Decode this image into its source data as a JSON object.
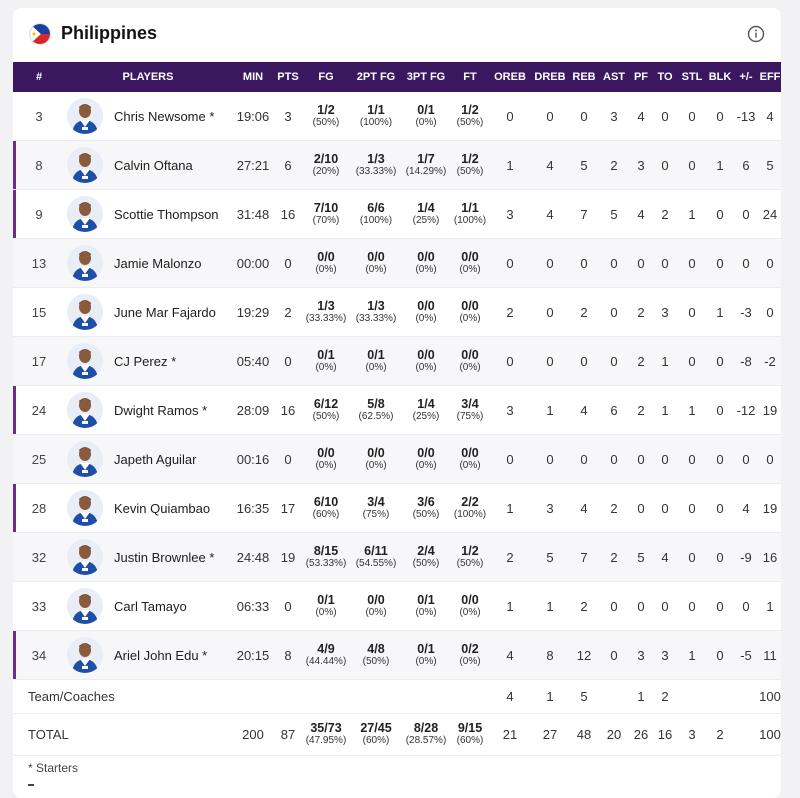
{
  "team": {
    "name": "Philippines",
    "flag_icon": "philippines-flag-icon",
    "info_icon": "info-icon"
  },
  "colors": {
    "header_bg": "#3b1760",
    "accent": "#6a2c8f"
  },
  "columns": [
    "#",
    "PLAYERS",
    "MIN",
    "PTS",
    "FG",
    "2PT FG",
    "3PT FG",
    "FT",
    "OREB",
    "DREB",
    "REB",
    "AST",
    "PF",
    "TO",
    "STL",
    "BLK",
    "+/-",
    "EFF"
  ],
  "players": [
    {
      "no": "3",
      "name": "Chris Newsome *",
      "min": "19:06",
      "pts": "3",
      "fg": "1/2",
      "fg_pct": "(50%)",
      "fg2": "1/1",
      "fg2_pct": "(100%)",
      "fg3": "0/1",
      "fg3_pct": "(0%)",
      "ft": "1/2",
      "ft_pct": "(50%)",
      "oreb": "0",
      "dreb": "0",
      "reb": "0",
      "ast": "3",
      "pf": "4",
      "to": "0",
      "stl": "0",
      "blk": "0",
      "pm": "-13",
      "eff": "4",
      "marked": false
    },
    {
      "no": "8",
      "name": "Calvin Oftana",
      "min": "27:21",
      "pts": "6",
      "fg": "2/10",
      "fg_pct": "(20%)",
      "fg2": "1/3",
      "fg2_pct": "(33.33%)",
      "fg3": "1/7",
      "fg3_pct": "(14.29%)",
      "ft": "1/2",
      "ft_pct": "(50%)",
      "oreb": "1",
      "dreb": "4",
      "reb": "5",
      "ast": "2",
      "pf": "3",
      "to": "0",
      "stl": "0",
      "blk": "1",
      "pm": "6",
      "eff": "5",
      "marked": true
    },
    {
      "no": "9",
      "name": "Scottie Thompson",
      "min": "31:48",
      "pts": "16",
      "fg": "7/10",
      "fg_pct": "(70%)",
      "fg2": "6/6",
      "fg2_pct": "(100%)",
      "fg3": "1/4",
      "fg3_pct": "(25%)",
      "ft": "1/1",
      "ft_pct": "(100%)",
      "oreb": "3",
      "dreb": "4",
      "reb": "7",
      "ast": "5",
      "pf": "4",
      "to": "2",
      "stl": "1",
      "blk": "0",
      "pm": "0",
      "eff": "24",
      "marked": true
    },
    {
      "no": "13",
      "name": "Jamie Malonzo",
      "min": "00:00",
      "pts": "0",
      "fg": "0/0",
      "fg_pct": "(0%)",
      "fg2": "0/0",
      "fg2_pct": "(0%)",
      "fg3": "0/0",
      "fg3_pct": "(0%)",
      "ft": "0/0",
      "ft_pct": "(0%)",
      "oreb": "0",
      "dreb": "0",
      "reb": "0",
      "ast": "0",
      "pf": "0",
      "to": "0",
      "stl": "0",
      "blk": "0",
      "pm": "0",
      "eff": "0",
      "marked": false
    },
    {
      "no": "15",
      "name": "June Mar Fajardo",
      "min": "19:29",
      "pts": "2",
      "fg": "1/3",
      "fg_pct": "(33.33%)",
      "fg2": "1/3",
      "fg2_pct": "(33.33%)",
      "fg3": "0/0",
      "fg3_pct": "(0%)",
      "ft": "0/0",
      "ft_pct": "(0%)",
      "oreb": "2",
      "dreb": "0",
      "reb": "2",
      "ast": "0",
      "pf": "2",
      "to": "3",
      "stl": "0",
      "blk": "1",
      "pm": "-3",
      "eff": "0",
      "marked": false
    },
    {
      "no": "17",
      "name": "CJ Perez *",
      "min": "05:40",
      "pts": "0",
      "fg": "0/1",
      "fg_pct": "(0%)",
      "fg2": "0/1",
      "fg2_pct": "(0%)",
      "fg3": "0/0",
      "fg3_pct": "(0%)",
      "ft": "0/0",
      "ft_pct": "(0%)",
      "oreb": "0",
      "dreb": "0",
      "reb": "0",
      "ast": "0",
      "pf": "2",
      "to": "1",
      "stl": "0",
      "blk": "0",
      "pm": "-8",
      "eff": "-2",
      "marked": false
    },
    {
      "no": "24",
      "name": "Dwight Ramos *",
      "min": "28:09",
      "pts": "16",
      "fg": "6/12",
      "fg_pct": "(50%)",
      "fg2": "5/8",
      "fg2_pct": "(62.5%)",
      "fg3": "1/4",
      "fg3_pct": "(25%)",
      "ft": "3/4",
      "ft_pct": "(75%)",
      "oreb": "3",
      "dreb": "1",
      "reb": "4",
      "ast": "6",
      "pf": "2",
      "to": "1",
      "stl": "1",
      "blk": "0",
      "pm": "-12",
      "eff": "19",
      "marked": true
    },
    {
      "no": "25",
      "name": "Japeth Aguilar",
      "min": "00:16",
      "pts": "0",
      "fg": "0/0",
      "fg_pct": "(0%)",
      "fg2": "0/0",
      "fg2_pct": "(0%)",
      "fg3": "0/0",
      "fg3_pct": "(0%)",
      "ft": "0/0",
      "ft_pct": "(0%)",
      "oreb": "0",
      "dreb": "0",
      "reb": "0",
      "ast": "0",
      "pf": "0",
      "to": "0",
      "stl": "0",
      "blk": "0",
      "pm": "0",
      "eff": "0",
      "marked": false
    },
    {
      "no": "28",
      "name": "Kevin Quiambao",
      "min": "16:35",
      "pts": "17",
      "fg": "6/10",
      "fg_pct": "(60%)",
      "fg2": "3/4",
      "fg2_pct": "(75%)",
      "fg3": "3/6",
      "fg3_pct": "(50%)",
      "ft": "2/2",
      "ft_pct": "(100%)",
      "oreb": "1",
      "dreb": "3",
      "reb": "4",
      "ast": "2",
      "pf": "0",
      "to": "0",
      "stl": "0",
      "blk": "0",
      "pm": "4",
      "eff": "19",
      "marked": true
    },
    {
      "no": "32",
      "name": "Justin Brownlee *",
      "min": "24:48",
      "pts": "19",
      "fg": "8/15",
      "fg_pct": "(53.33%)",
      "fg2": "6/11",
      "fg2_pct": "(54.55%)",
      "fg3": "2/4",
      "fg3_pct": "(50%)",
      "ft": "1/2",
      "ft_pct": "(50%)",
      "oreb": "2",
      "dreb": "5",
      "reb": "7",
      "ast": "2",
      "pf": "5",
      "to": "4",
      "stl": "0",
      "blk": "0",
      "pm": "-9",
      "eff": "16",
      "marked": false
    },
    {
      "no": "33",
      "name": "Carl Tamayo",
      "min": "06:33",
      "pts": "0",
      "fg": "0/1",
      "fg_pct": "(0%)",
      "fg2": "0/0",
      "fg2_pct": "(0%)",
      "fg3": "0/1",
      "fg3_pct": "(0%)",
      "ft": "0/0",
      "ft_pct": "(0%)",
      "oreb": "1",
      "dreb": "1",
      "reb": "2",
      "ast": "0",
      "pf": "0",
      "to": "0",
      "stl": "0",
      "blk": "0",
      "pm": "0",
      "eff": "1",
      "marked": false
    },
    {
      "no": "34",
      "name": "Ariel John Edu *",
      "min": "20:15",
      "pts": "8",
      "fg": "4/9",
      "fg_pct": "(44.44%)",
      "fg2": "4/8",
      "fg2_pct": "(50%)",
      "fg3": "0/1",
      "fg3_pct": "(0%)",
      "ft": "0/2",
      "ft_pct": "(0%)",
      "oreb": "4",
      "dreb": "8",
      "reb": "12",
      "ast": "0",
      "pf": "3",
      "to": "3",
      "stl": "1",
      "blk": "0",
      "pm": "-5",
      "eff": "11",
      "marked": true
    }
  ],
  "team_row": {
    "label": "Team/Coaches",
    "oreb": "4",
    "dreb": "1",
    "reb": "5",
    "pf": "1",
    "to": "2",
    "eff": "100"
  },
  "total_row": {
    "label": "TOTAL",
    "min": "200",
    "pts": "87",
    "fg": "35/73",
    "fg_pct": "(47.95%)",
    "fg2": "27/45",
    "fg2_pct": "(60%)",
    "fg3": "8/28",
    "fg3_pct": "(28.57%)",
    "ft": "9/15",
    "ft_pct": "(60%)",
    "oreb": "21",
    "dreb": "27",
    "reb": "48",
    "ast": "20",
    "pf": "26",
    "to": "16",
    "stl": "3",
    "blk": "2",
    "eff": "100"
  },
  "footnote": "* Starters"
}
